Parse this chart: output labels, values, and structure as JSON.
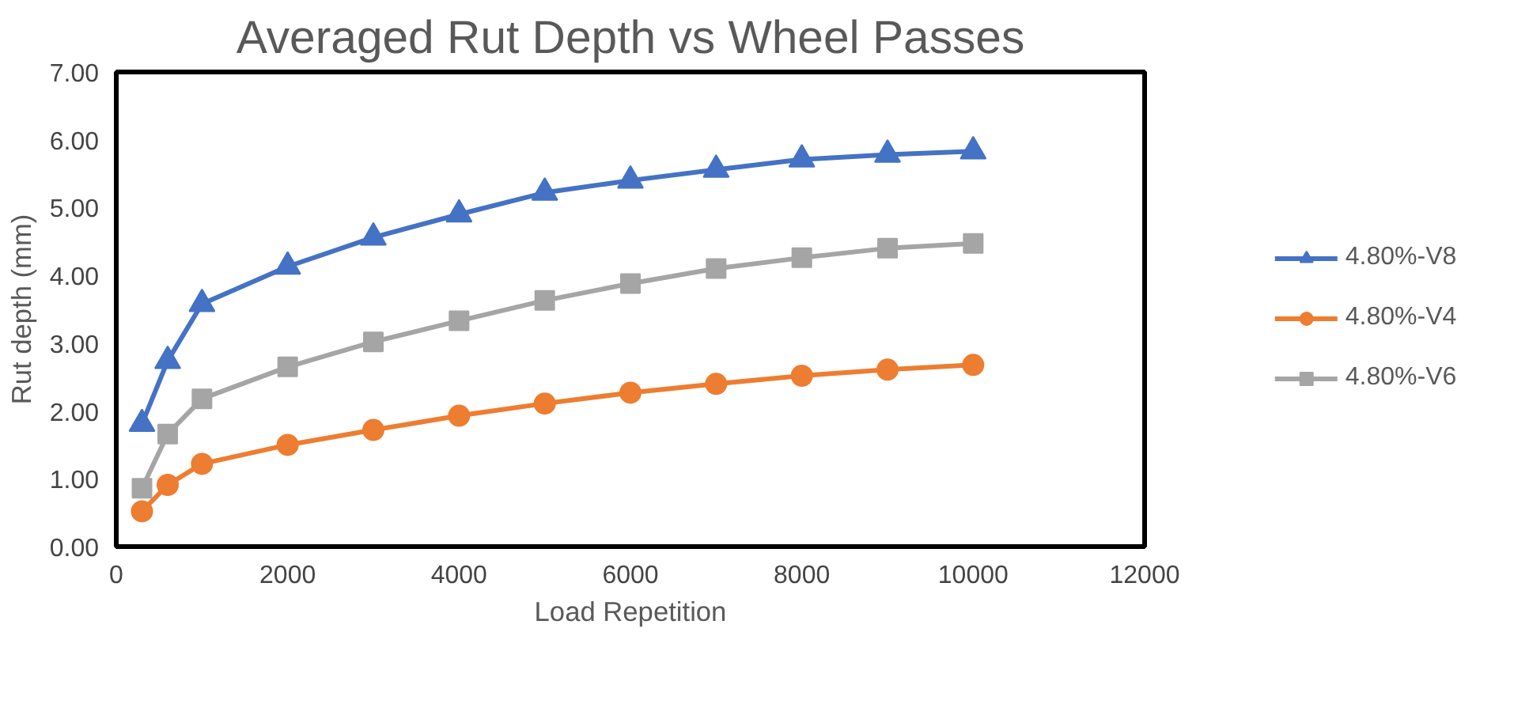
{
  "chart_data": {
    "type": "line",
    "title": "Averaged Rut Depth vs Wheel Passes",
    "xlabel": "Load Repetition",
    "ylabel": "Rut depth (mm)",
    "x": [
      300,
      600,
      1000,
      2000,
      3000,
      4000,
      5000,
      6000,
      7000,
      8000,
      9000,
      10000
    ],
    "series": [
      {
        "name": "4.80%-V8",
        "color": "#4472c4",
        "marker": "triangle",
        "values": [
          1.81,
          2.74,
          3.58,
          4.13,
          4.56,
          4.9,
          5.22,
          5.4,
          5.56,
          5.71,
          5.78,
          5.83
        ]
      },
      {
        "name": "4.80%-V4",
        "color": "#ed7d31",
        "marker": "circle",
        "values": [
          0.52,
          0.91,
          1.22,
          1.5,
          1.72,
          1.93,
          2.11,
          2.27,
          2.4,
          2.52,
          2.61,
          2.68
        ]
      },
      {
        "name": "4.80%-V6",
        "color": "#a5a5a5",
        "marker": "square",
        "values": [
          0.86,
          1.66,
          2.18,
          2.65,
          3.02,
          3.33,
          3.63,
          3.88,
          4.1,
          4.26,
          4.4,
          4.47
        ]
      }
    ],
    "xlim": [
      0,
      12000
    ],
    "xticks": [
      0,
      2000,
      4000,
      6000,
      8000,
      10000,
      12000
    ],
    "ylim": [
      0,
      7
    ],
    "yticks": [
      {
        "value": 0,
        "label": "0.00"
      },
      {
        "value": 1,
        "label": "1.00"
      },
      {
        "value": 2,
        "label": "2.00"
      },
      {
        "value": 3,
        "label": "3.00"
      },
      {
        "value": 4,
        "label": "4.00"
      },
      {
        "value": 5,
        "label": "5.00"
      },
      {
        "value": 6,
        "label": "6.00"
      },
      {
        "value": 7,
        "label": "7.00"
      }
    ],
    "grid": false,
    "legend": "right",
    "line_style": "solid"
  }
}
